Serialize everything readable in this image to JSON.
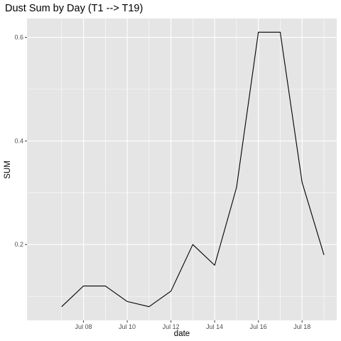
{
  "chart_data": {
    "type": "line",
    "title": "Dust Sum by Day (T1 --> T19)",
    "xlabel": "date",
    "ylabel": "SUM",
    "x": [
      "2018-07-07",
      "2018-07-08",
      "2018-07-09",
      "2018-07-10",
      "2018-07-11",
      "2018-07-12",
      "2018-07-13",
      "2018-07-14",
      "2018-07-15",
      "2018-07-16",
      "2018-07-17",
      "2018-07-18",
      "2018-07-19"
    ],
    "values": [
      0.08,
      0.12,
      0.12,
      0.09,
      0.08,
      0.11,
      0.2,
      0.16,
      0.31,
      0.61,
      0.61,
      0.32,
      0.18
    ],
    "x_ticks": [
      "Jul 08",
      "Jul 10",
      "Jul 12",
      "Jul 14",
      "Jul 16",
      "Jul 18"
    ],
    "y_ticks": [
      0.2,
      0.4,
      0.6
    ],
    "y_tick_labels": [
      "0.2",
      "0.4",
      "0.6"
    ],
    "xlim": [
      "2018-07-06",
      "2018-07-19"
    ],
    "ylim": [
      0.0535,
      0.6365
    ],
    "grid": true,
    "panel_background": "#e5e5e5",
    "grid_color": "#ffffff",
    "line_color": "#000000"
  }
}
